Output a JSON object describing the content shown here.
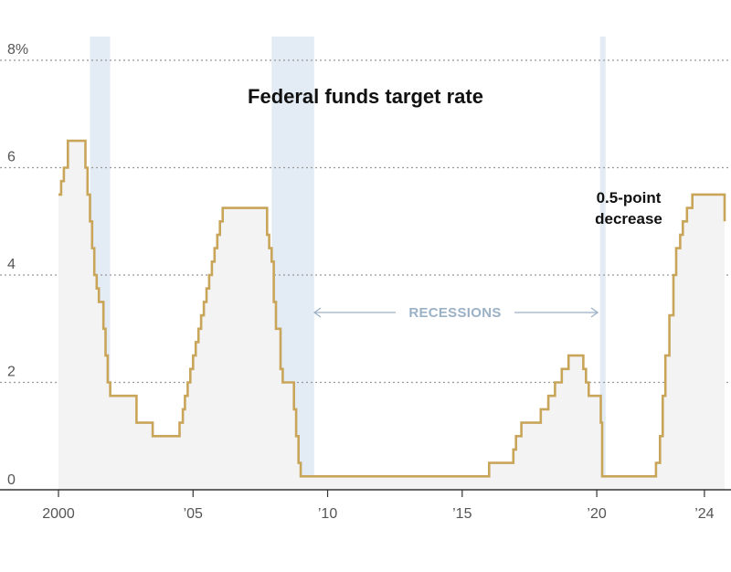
{
  "chart_data": {
    "type": "line",
    "step": true,
    "title": "Federal funds target rate",
    "xlim": [
      2000,
      2024.75
    ],
    "ylim": [
      0,
      8
    ],
    "grid": true,
    "yticks": [
      {
        "value": 0,
        "label": "0"
      },
      {
        "value": 2,
        "label": "2"
      },
      {
        "value": 4,
        "label": "4"
      },
      {
        "value": 6,
        "label": "6"
      },
      {
        "value": 8,
        "label": "8%"
      }
    ],
    "xticks": [
      {
        "value": 2000,
        "label": "2000"
      },
      {
        "value": 2005,
        "label": "’05"
      },
      {
        "value": 2010,
        "label": "’10"
      },
      {
        "value": 2015,
        "label": "’15"
      },
      {
        "value": 2020,
        "label": "’20"
      },
      {
        "value": 2024,
        "label": "’24"
      }
    ],
    "recessions": [
      [
        2001.17,
        2001.92
      ],
      [
        2007.92,
        2009.5
      ],
      [
        2020.12,
        2020.33
      ]
    ],
    "recession_label": "RECESSIONS",
    "annotation": {
      "lines": [
        "0.5-point",
        "decrease"
      ]
    },
    "colors": {
      "line": "#c9a55a",
      "fill": "#f3f3f3",
      "recession": "#e3ecf5",
      "grid": "#999999",
      "axis": "#333333",
      "arrow": "#9ab1c6"
    },
    "series": [
      {
        "x": [
          2000.0,
          2000.1,
          2000.2,
          2000.35,
          2001.0,
          2001.08,
          2001.17,
          2001.25,
          2001.33,
          2001.42,
          2001.5,
          2001.67,
          2001.75,
          2001.83,
          2001.92,
          2002.87,
          2002.9,
          2003.45,
          2003.5,
          2004.45,
          2004.5,
          2004.62,
          2004.7,
          2004.8,
          2004.9,
          2005.0,
          2005.1,
          2005.2,
          2005.3,
          2005.4,
          2005.5,
          2005.6,
          2005.7,
          2005.8,
          2005.9,
          2006.0,
          2006.1,
          2006.2,
          2006.3,
          2006.45,
          2006.5,
          2007.67,
          2007.75,
          2007.83,
          2007.92,
          2008.0,
          2008.08,
          2008.25,
          2008.33,
          2008.75,
          2008.83,
          2008.92,
          2009.0,
          2015.92,
          2016.0,
          2016.9,
          2017.0,
          2017.2,
          2017.45,
          2017.92,
          2018.2,
          2018.45,
          2018.7,
          2018.95,
          2019.5,
          2019.6,
          2019.7,
          2020.15,
          2020.2,
          2020.3,
          2022.2,
          2022.35,
          2022.45,
          2022.55,
          2022.7,
          2022.85,
          2022.95,
          2023.1,
          2023.2,
          2023.35,
          2023.55,
          2024.7,
          2024.75
        ],
        "y": [
          5.5,
          5.75,
          6.0,
          6.5,
          6.0,
          5.5,
          5.0,
          4.5,
          4.0,
          3.75,
          3.5,
          3.0,
          2.5,
          2.0,
          1.75,
          1.75,
          1.25,
          1.25,
          1.0,
          1.0,
          1.25,
          1.5,
          1.75,
          2.0,
          2.25,
          2.5,
          2.75,
          3.0,
          3.25,
          3.5,
          3.75,
          4.0,
          4.25,
          4.5,
          4.75,
          5.0,
          5.25,
          5.25,
          5.25,
          5.25,
          5.25,
          5.25,
          4.75,
          4.5,
          4.25,
          3.5,
          3.0,
          2.25,
          2.0,
          1.5,
          1.0,
          0.5,
          0.25,
          0.25,
          0.5,
          0.75,
          1.0,
          1.25,
          1.25,
          1.5,
          1.75,
          2.0,
          2.25,
          2.5,
          2.25,
          2.0,
          1.75,
          1.25,
          0.25,
          0.25,
          0.5,
          1.0,
          1.75,
          2.5,
          3.25,
          4.0,
          4.5,
          4.75,
          5.0,
          5.25,
          5.5,
          5.5,
          5.0
        ]
      }
    ]
  }
}
